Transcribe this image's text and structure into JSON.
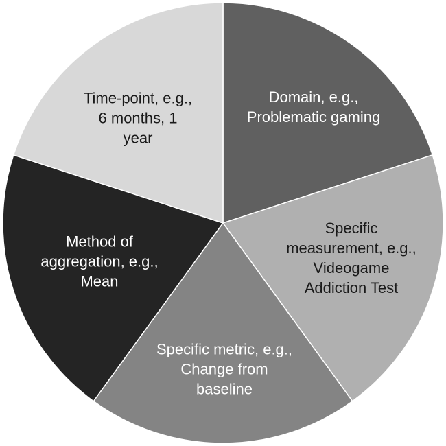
{
  "segments": [
    {
      "id": "domain",
      "lines": [
        "Domain, e.g.,",
        "Problematic gaming"
      ],
      "fill": "#606060",
      "text_color": "#ffffff"
    },
    {
      "id": "measurement",
      "lines": [
        "Specific",
        "measurement, e.g.,",
        "Videogame",
        "Addiction Test"
      ],
      "fill": "#b0b0b0",
      "text_color": "#1a1a1a"
    },
    {
      "id": "metric",
      "lines": [
        "Specific metric, e.g.,",
        "Change from",
        "baseline"
      ],
      "fill": "#848484",
      "text_color": "#ffffff"
    },
    {
      "id": "aggregation",
      "lines": [
        "Method of",
        "aggregation, e.g.,",
        "Mean"
      ],
      "fill": "#242424",
      "text_color": "#ffffff"
    },
    {
      "id": "timepoint",
      "lines": [
        "Time-point, e.g.,",
        "6 months, 1",
        "year"
      ],
      "fill": "#d8d8d8",
      "text_color": "#1a1a1a"
    }
  ],
  "colors": {
    "border": "#ffffff"
  }
}
